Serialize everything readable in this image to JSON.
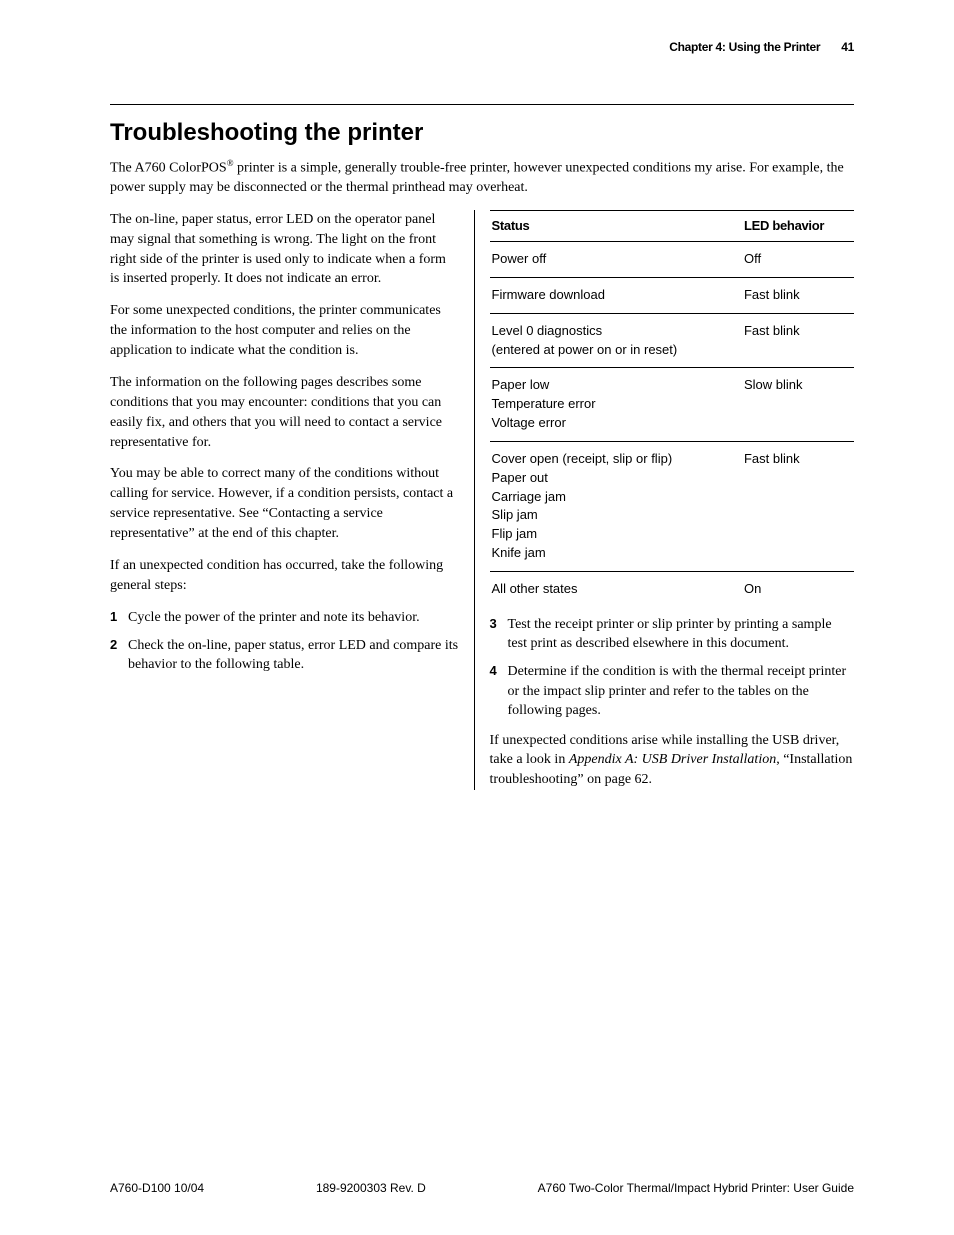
{
  "header": {
    "chapter": "Chapter 4: Using the Printer",
    "pagenum": "41"
  },
  "title": "Troubleshooting the printer",
  "intro": "The A760 ColorPOS® printer is a simple, generally trouble-free printer, however unexpected conditions my arise. For example, the power supply may be disconnected or the thermal printhead may overheat.",
  "left": {
    "p1": "The on-line, paper status, error LED on the operator panel may signal that something is wrong. The light on the front right side of the printer is used only to indicate when a form is inserted properly. It does not indicate an error.",
    "p2": "For some unexpected conditions, the printer communicates the information to the host computer and relies on the application to indicate what the condition is.",
    "p3": "The information on the following pages describes some conditions that you may encounter: conditions that you can easily fix, and others that you will need to contact a service representative for.",
    "p4": "You may be able to correct many of the conditions without calling for service. However, if a condition persists, contact a service representative. See “Contacting a service representative” at the end of this chapter.",
    "p5": "If an unexpected condition has occurred, take the following general steps:",
    "steps": [
      {
        "num": "1",
        "txt": "Cycle the power of the printer and note its behavior."
      },
      {
        "num": "2",
        "txt": "Check the on-line, paper status, error LED and compare its behavior to the following table."
      }
    ]
  },
  "table": {
    "h1": "Status",
    "h2": "LED behavior",
    "rows": [
      {
        "status": "Power off",
        "led": "Off"
      },
      {
        "status": "Firmware download",
        "led": "Fast blink"
      },
      {
        "status": "Level 0 diagnostics\n(entered at power on or in reset)",
        "led": "Fast blink"
      },
      {
        "status": "Paper low\nTemperature error\nVoltage error",
        "led": "Slow blink"
      },
      {
        "status": "Cover open (receipt, slip or flip)\nPaper out\nCarriage jam\nSlip jam\nFlip jam\nKnife jam",
        "led": "Fast blink"
      },
      {
        "status": "All other states",
        "led": "On"
      }
    ]
  },
  "right": {
    "steps": [
      {
        "num": "3",
        "txt": "Test the receipt printer or slip printer by printing a sample test print as described elsewhere in this document."
      },
      {
        "num": "4",
        "txt": "Determine if the condition is with the thermal receipt printer or the impact slip printer and refer to the tables on the following pages."
      }
    ],
    "p_after_pre": "If unexpected conditions arise while installing the USB driver, take a look in ",
    "p_after_ital": "Appendix A: USB Driver Installation",
    "p_after_post": ", “Installation troubleshooting” on page 62."
  },
  "footer": {
    "left": "A760-D100  10/04",
    "center": "189-9200303  Rev. D",
    "right": "A760 Two-Color Thermal/Impact Hybrid Printer: User Guide"
  },
  "colors": {
    "text": "#000000",
    "bg": "#ffffff",
    "rule": "#000000"
  },
  "fonts": {
    "body_serif": "Georgia, Times New Roman, serif",
    "heading_sans": "Arial, Helvetica, sans-serif",
    "body_size_pt": 11,
    "h1_size_pt": 18,
    "table_size_pt": 10,
    "footer_size_pt": 9
  }
}
